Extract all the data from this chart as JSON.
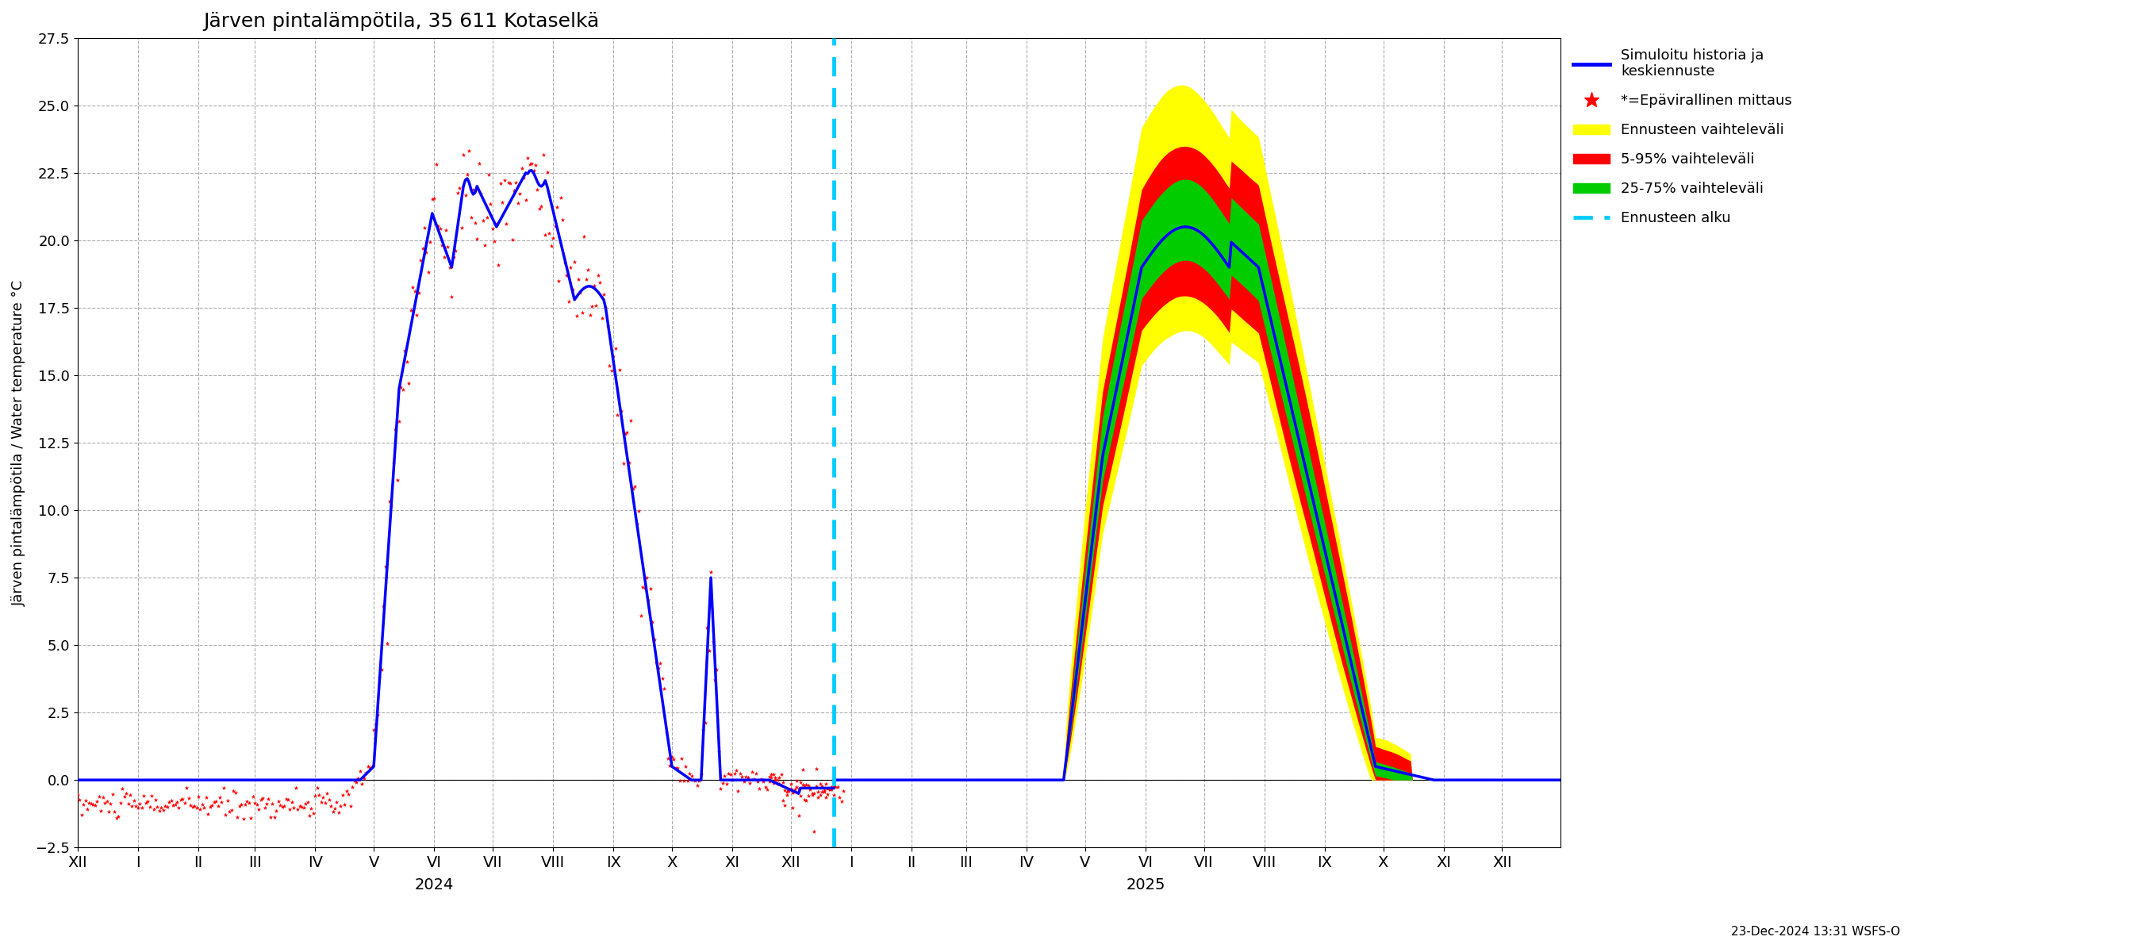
{
  "title": "Järven pintalämpötila, 35 611 Kotaselkä",
  "ylabel": "Järven pintalämpötila / Water temperature °C",
  "ylim": [
    -2.5,
    27.5
  ],
  "yticks": [
    -2.5,
    0.0,
    2.5,
    5.0,
    7.5,
    10.0,
    12.5,
    15.0,
    17.5,
    20.0,
    22.5,
    25.0,
    27.5
  ],
  "background_color": "#ffffff",
  "grid_color": "#aaaaaa",
  "forecast_start_date": "2024-12-23",
  "timestamp_label": "23-Dec-2024 13:31 WSFS-O",
  "months_2024": [
    "XII",
    "I",
    "II",
    "III",
    "IV",
    "V",
    "VI",
    "VII",
    "VIII",
    "IX",
    "X",
    "XI",
    "XII"
  ],
  "months_2025": [
    "I",
    "II",
    "III",
    "IV",
    "V",
    "VI",
    "VII",
    "VIII",
    "IX",
    "X",
    "XI",
    "XII"
  ],
  "blue_color": "#0000ff",
  "red_color": "#ff0000",
  "yellow_color": "#ffff00",
  "green_color": "#00cc00",
  "cyan_color": "#00ccff",
  "legend_label_sim": "Simuloitu historia ja\nkeskiennuste",
  "legend_label_meas": "*=Epävirallinen mittaus",
  "legend_label_yellow": "Ennusteen vaihteleväli",
  "legend_label_red": "5-95% vaihteleväli",
  "legend_label_green": "25-75% vaihteleväli",
  "legend_label_cyan": "Ennusteen alku"
}
